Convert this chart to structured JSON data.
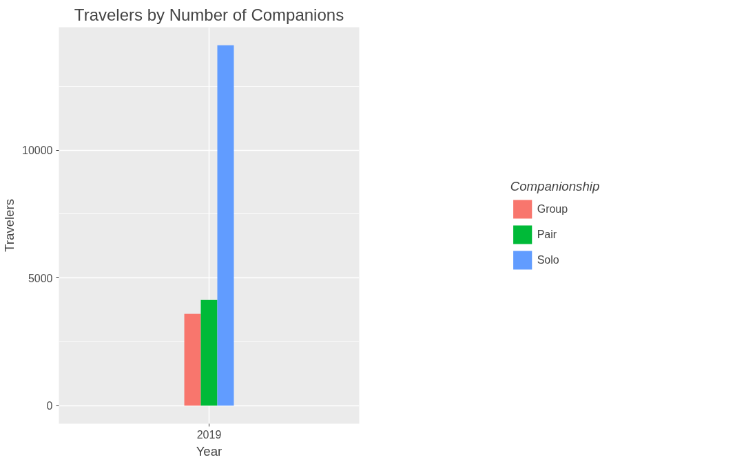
{
  "chart_data": {
    "type": "bar",
    "title": "Travelers by Number of Companions",
    "xlabel": "Year",
    "ylabel": "Travelers",
    "legend_title": "Companionship",
    "categories": [
      "2019"
    ],
    "series": [
      {
        "name": "Group",
        "color": "#f8766d",
        "values": [
          3600
        ]
      },
      {
        "name": "Pair",
        "color": "#00ba38",
        "values": [
          4140
        ]
      },
      {
        "name": "Solo",
        "color": "#619cff",
        "values": [
          14110
        ]
      }
    ],
    "ylim": [
      -705,
      14815
    ],
    "yticks": [
      0,
      5000,
      10000
    ],
    "grid": true,
    "legend": "right"
  }
}
